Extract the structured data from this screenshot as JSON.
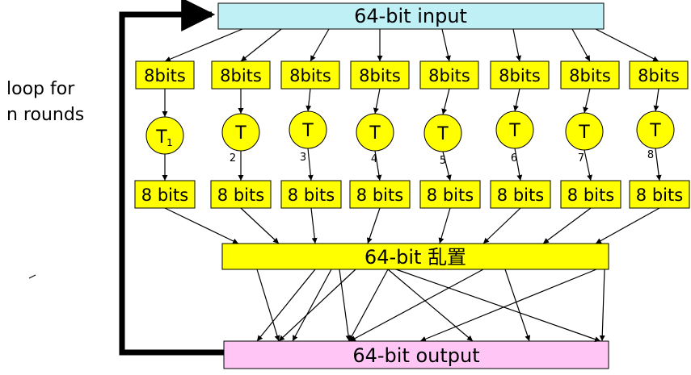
{
  "input_box": {
    "label": "64-bit input",
    "fill": "#bff0f5"
  },
  "permute_box": {
    "label": "64-bit 乱置",
    "fill": "#ffff00"
  },
  "output_box": {
    "label": "64-bit output",
    "fill": "#ffc6f5"
  },
  "loop_label": {
    "line1": "loop for",
    "line2": "n rounds"
  },
  "block_fill": "#ffff00",
  "top_blocks": [
    "8bits",
    "8bits",
    "8bits",
    "8bits",
    "8bits",
    "8bits",
    "8bits",
    "8bits"
  ],
  "bottom_blocks": [
    "8 bits",
    "8 bits",
    "8 bits",
    "8 bits",
    "8 bits",
    "8 bits",
    "8 bits",
    "8 bits"
  ],
  "t_boxes": [
    {
      "letter": "T",
      "sub": "1"
    },
    {
      "letter": "T",
      "sub": "2"
    },
    {
      "letter": "T",
      "sub": "3"
    },
    {
      "letter": "T",
      "sub": "4"
    },
    {
      "letter": "T",
      "sub": "5"
    },
    {
      "letter": "T",
      "sub": "6"
    },
    {
      "letter": "T",
      "sub": "7"
    },
    {
      "letter": "T",
      "sub": "8"
    }
  ]
}
